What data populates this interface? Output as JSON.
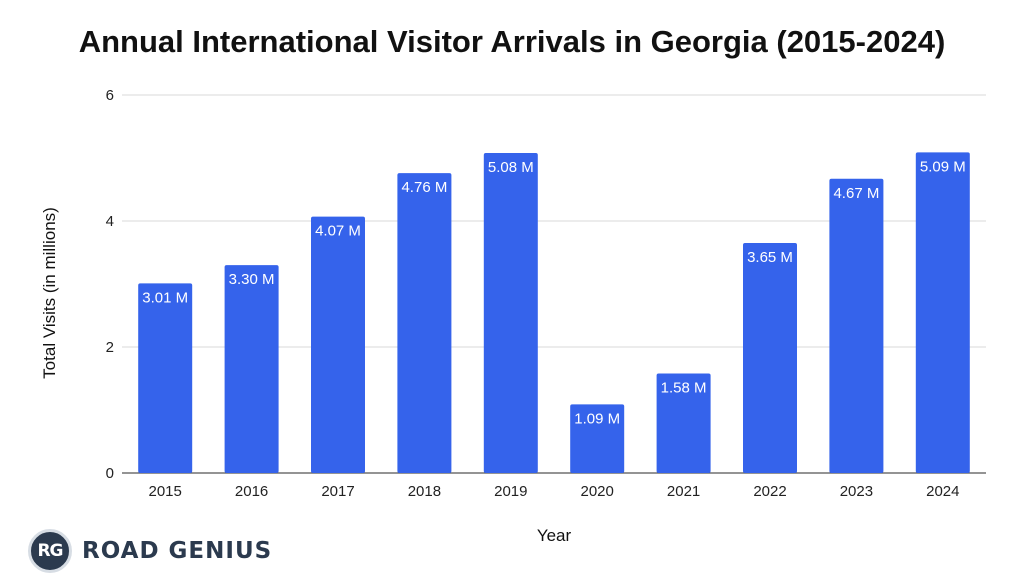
{
  "chart_data": {
    "type": "bar",
    "title": "Annual International Visitor Arrivals in Georgia (2015-2024)",
    "xlabel": "Year",
    "ylabel": "Total Visits (in millions)",
    "ylim": [
      0,
      6
    ],
    "yticks": [
      0,
      2,
      4,
      6
    ],
    "grid": true,
    "categories": [
      "2015",
      "2016",
      "2017",
      "2018",
      "2019",
      "2020",
      "2021",
      "2022",
      "2023",
      "2024"
    ],
    "values": [
      3.01,
      3.3,
      4.07,
      4.76,
      5.08,
      1.09,
      1.58,
      3.65,
      4.67,
      5.09
    ],
    "data_labels": [
      "3.01 M",
      "3.30 M",
      "4.07 M",
      "4.76 M",
      "5.08 M",
      "1.09 M",
      "1.58 M",
      "3.65 M",
      "4.67 M",
      "5.09 M"
    ],
    "bar_color": "#3563eb"
  },
  "brand": {
    "badge": "RG",
    "name": "ROAD GENIUS"
  }
}
